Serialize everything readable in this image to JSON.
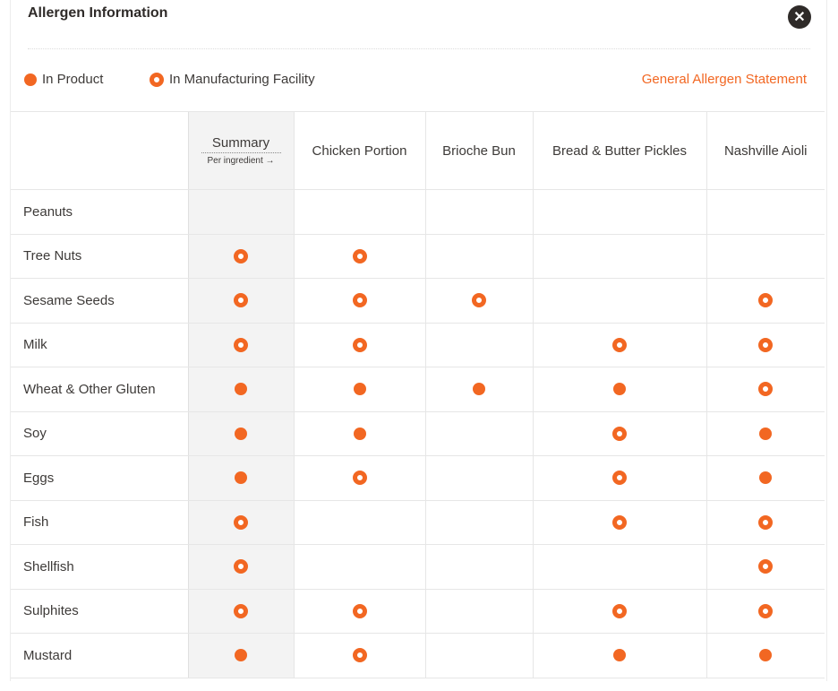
{
  "title": "Allergen Information",
  "close_icon": "close-icon",
  "legend": {
    "in_product": "In Product",
    "in_facility": "In Manufacturing Facility"
  },
  "general_statement": "General Allergen Statement",
  "accent_color": "#f26722",
  "table": {
    "summary_label": "Summary",
    "summary_sub": "Per ingredient →",
    "columns": [
      "Chicken Portion",
      "Brioche Bun",
      "Bread & Butter Pickles",
      "Nashville Aioli"
    ],
    "rows": [
      {
        "allergen": "Peanuts",
        "cells": [
          "",
          "",
          "",
          "",
          ""
        ]
      },
      {
        "allergen": "Tree Nuts",
        "cells": [
          "facility",
          "facility",
          "",
          "",
          ""
        ]
      },
      {
        "allergen": "Sesame Seeds",
        "cells": [
          "facility",
          "facility",
          "facility",
          "",
          "facility"
        ]
      },
      {
        "allergen": "Milk",
        "cells": [
          "facility",
          "facility",
          "",
          "facility",
          "facility"
        ]
      },
      {
        "allergen": "Wheat & Other Gluten",
        "cells": [
          "product",
          "product",
          "product",
          "product",
          "facility"
        ]
      },
      {
        "allergen": "Soy",
        "cells": [
          "product",
          "product",
          "",
          "facility",
          "product"
        ]
      },
      {
        "allergen": "Eggs",
        "cells": [
          "product",
          "facility",
          "",
          "facility",
          "product"
        ]
      },
      {
        "allergen": "Fish",
        "cells": [
          "facility",
          "",
          "",
          "facility",
          "facility"
        ]
      },
      {
        "allergen": "Shellfish",
        "cells": [
          "facility",
          "",
          "",
          "",
          "facility"
        ]
      },
      {
        "allergen": "Sulphites",
        "cells": [
          "facility",
          "facility",
          "",
          "facility",
          "facility"
        ]
      },
      {
        "allergen": "Mustard",
        "cells": [
          "product",
          "facility",
          "",
          "product",
          "product"
        ]
      }
    ]
  }
}
